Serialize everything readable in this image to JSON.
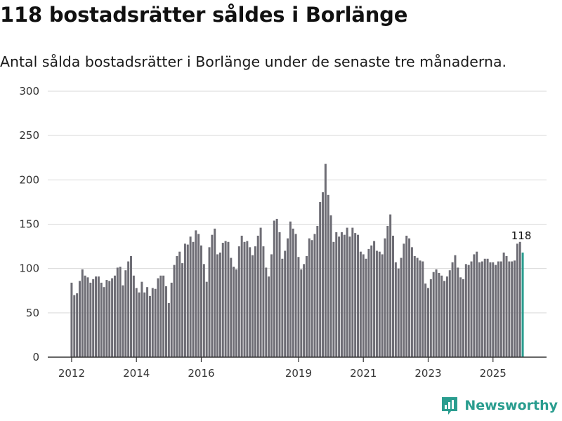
{
  "colors": {
    "bar": "#6e6d75",
    "highlight": "#2a9d8f",
    "grid": "#d9d9d9",
    "brand": "#2a9d8f"
  },
  "brand": {
    "name": "Newsworthy",
    "icon": "newsworthy-logo-icon"
  },
  "chart_data": {
    "type": "bar",
    "title": "118 bostadsrätter såldes i Borlänge",
    "subtitle": "Antal sålda bostadsrätter i Borlänge under de senaste tre månaderna.",
    "xlabel": "",
    "ylabel": "",
    "ylim": [
      0,
      300
    ],
    "yticks": [
      0,
      50,
      100,
      150,
      200,
      250,
      300
    ],
    "xticks": [
      {
        "label": "2012",
        "index": 0
      },
      {
        "label": "2014",
        "index": 24
      },
      {
        "label": "2016",
        "index": 48
      },
      {
        "label": "2019",
        "index": 84
      },
      {
        "label": "2021",
        "index": 108
      },
      {
        "label": "2023",
        "index": 132
      },
      {
        "label": "2025",
        "index": 156
      }
    ],
    "start": "2012-01",
    "frequency": "monthly (rolling three-month total)",
    "values": [
      84,
      70,
      72,
      86,
      99,
      92,
      90,
      84,
      88,
      91,
      91,
      84,
      79,
      87,
      86,
      89,
      92,
      101,
      102,
      81,
      98,
      108,
      114,
      92,
      78,
      73,
      85,
      73,
      79,
      69,
      78,
      77,
      89,
      92,
      92,
      80,
      61,
      84,
      104,
      114,
      119,
      106,
      128,
      127,
      136,
      130,
      143,
      139,
      126,
      105,
      85,
      124,
      138,
      145,
      116,
      118,
      129,
      131,
      130,
      112,
      102,
      99,
      125,
      137,
      130,
      131,
      124,
      115,
      125,
      137,
      146,
      125,
      101,
      91,
      116,
      154,
      156,
      141,
      111,
      120,
      134,
      153,
      145,
      139,
      113,
      99,
      105,
      114,
      134,
      132,
      139,
      148,
      175,
      186,
      218,
      183,
      160,
      130,
      141,
      136,
      141,
      138,
      146,
      136,
      146,
      140,
      138,
      119,
      116,
      111,
      122,
      126,
      131,
      120,
      119,
      116,
      134,
      148,
      161,
      137,
      107,
      100,
      112,
      128,
      137,
      134,
      124,
      114,
      112,
      109,
      108,
      83,
      78,
      88,
      96,
      99,
      95,
      92,
      86,
      91,
      98,
      107,
      115,
      101,
      90,
      88,
      105,
      104,
      108,
      116,
      119,
      107,
      108,
      111,
      111,
      107,
      107,
      104,
      108,
      108,
      118,
      114,
      108,
      108,
      109,
      128,
      130,
      118
    ],
    "highlight_last": true,
    "annotation": {
      "label": "118",
      "index": 167
    }
  }
}
